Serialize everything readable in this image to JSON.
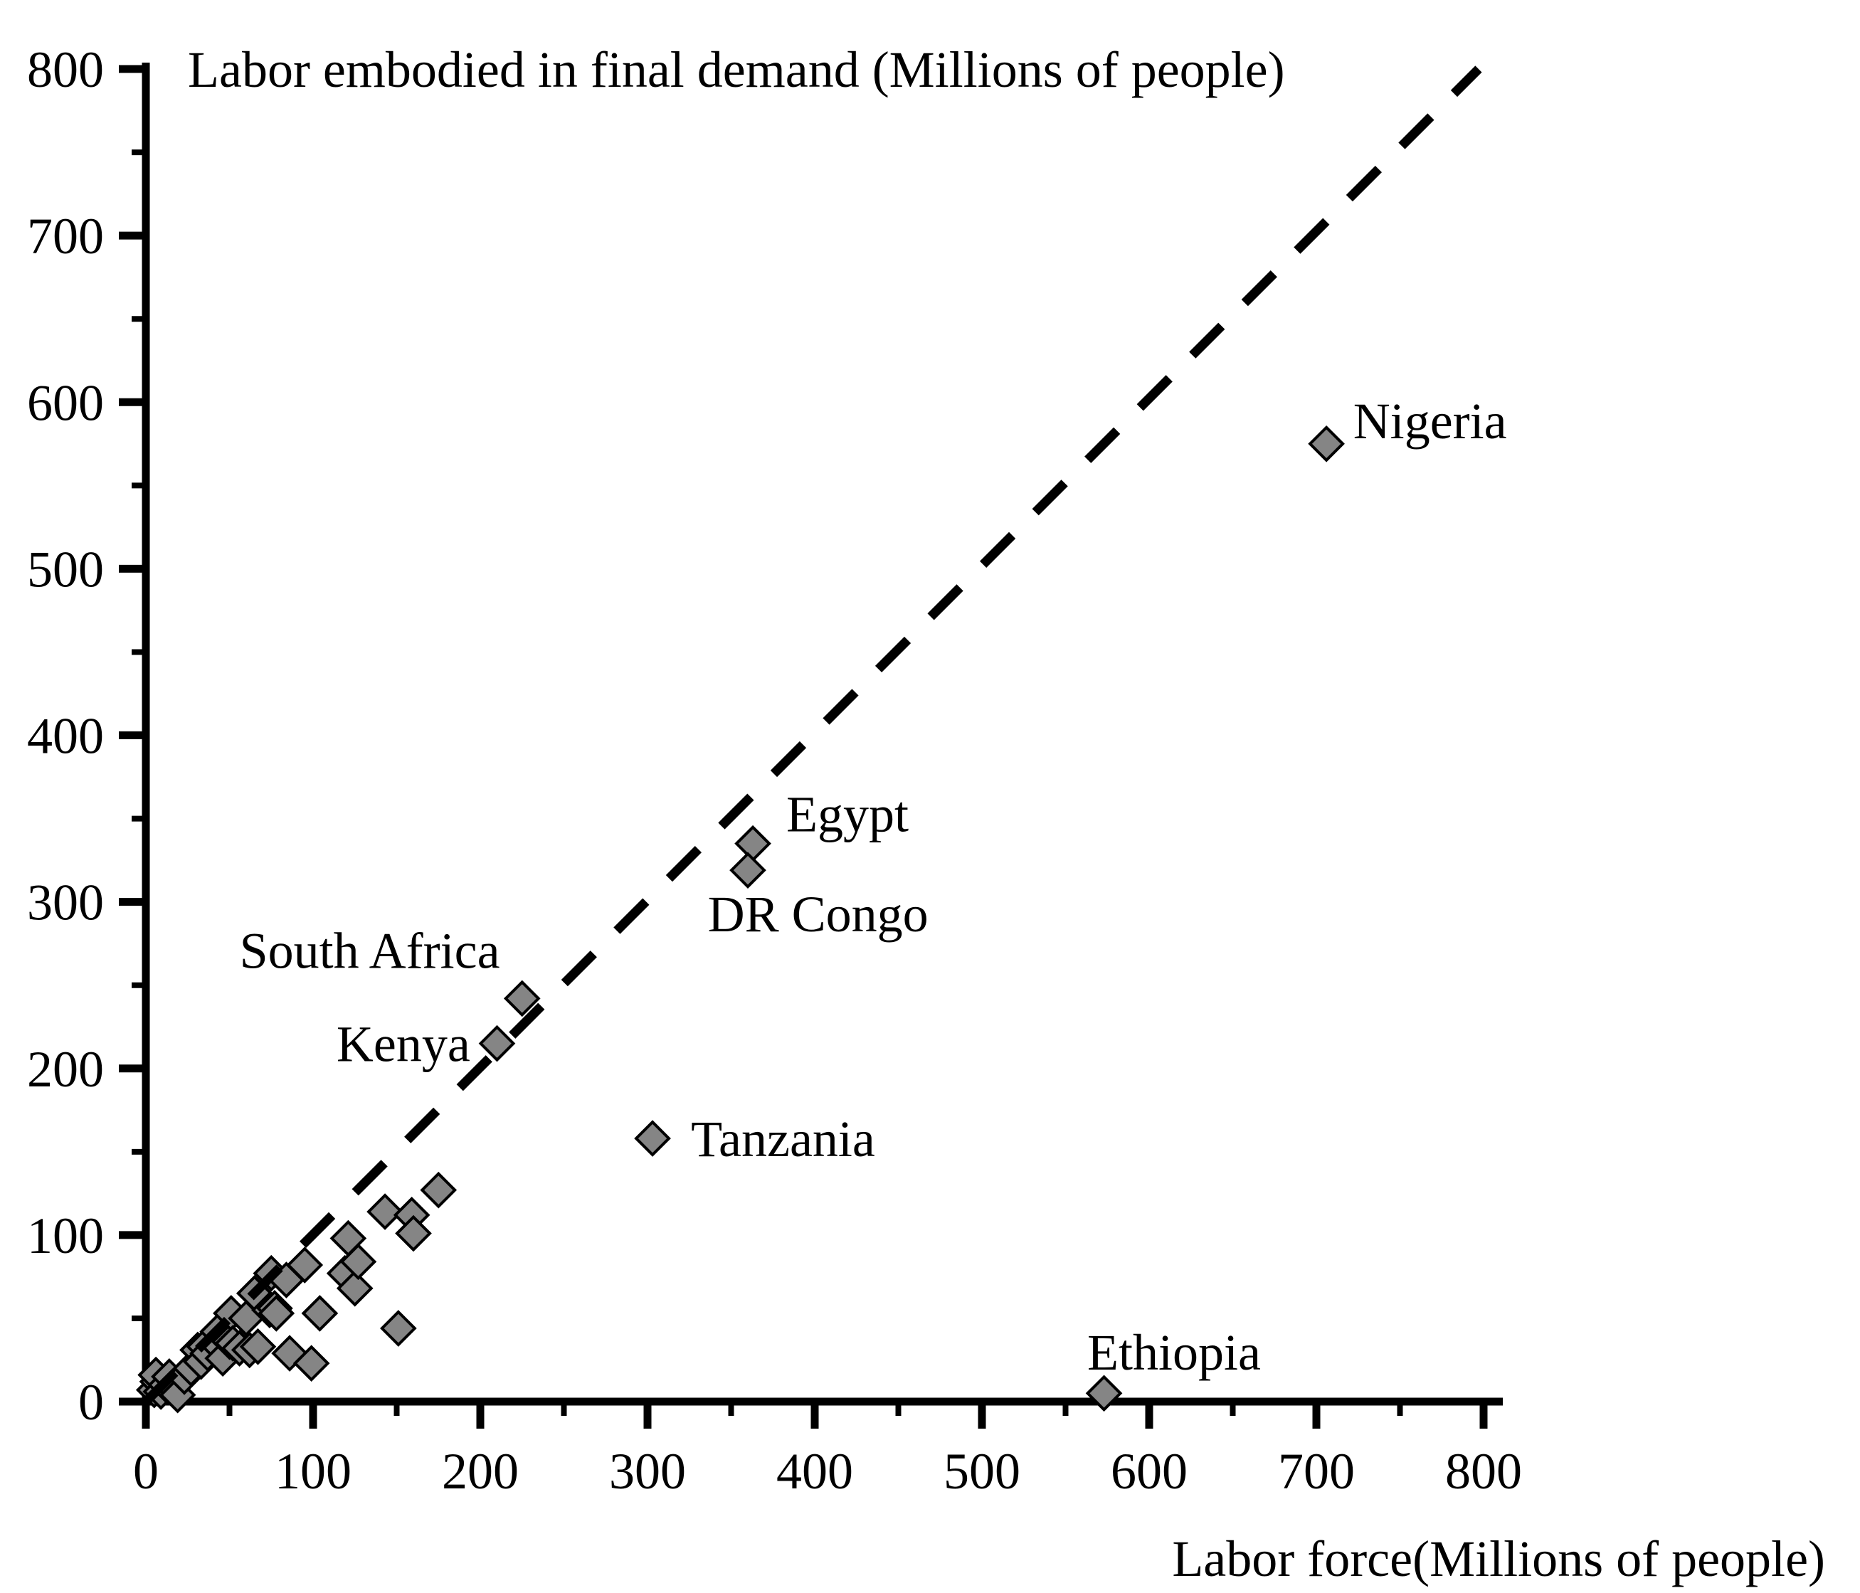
{
  "chart_data": {
    "type": "scatter",
    "title": "Labor embodied in final demand (Millions of people)",
    "xlabel": "Labor force(Millions of people)",
    "xlim": [
      0,
      800
    ],
    "ylim": [
      0,
      800
    ],
    "x_ticks": [
      0,
      100,
      200,
      300,
      400,
      500,
      600,
      700,
      800
    ],
    "y_ticks": [
      0,
      100,
      200,
      300,
      400,
      500,
      600,
      700,
      800
    ],
    "minor_tick_step": 50,
    "grid": false,
    "legend": false,
    "colors": {
      "marker_fill": "#858585",
      "marker_stroke": "#000000",
      "axis": "#000000",
      "background": "#ffffff"
    },
    "marker": {
      "shape": "diamond",
      "fill": "#858585",
      "stroke": "#000000"
    },
    "reference_line": {
      "style": "dashed",
      "meaning": "y = x identity line",
      "from": [
        0,
        0
      ],
      "to": [
        797,
        800
      ]
    },
    "labeled_points": [
      {
        "label": "Nigeria",
        "x": 706,
        "y": 575,
        "label_pos": [
          722,
          589
        ],
        "anchor": "start"
      },
      {
        "label": "Egypt",
        "x": 363,
        "y": 335,
        "label_pos": [
          383,
          353
        ],
        "anchor": "start"
      },
      {
        "label": "DR Congo",
        "x": 360,
        "y": 319,
        "label_pos": [
          336,
          293
        ],
        "anchor": "start"
      },
      {
        "label": "South Africa",
        "x": 225,
        "y": 242,
        "label_pos": [
          56,
          271
        ],
        "anchor": "start"
      },
      {
        "label": "Kenya",
        "x": 210,
        "y": 215,
        "label_pos": [
          114,
          215
        ],
        "anchor": "start"
      },
      {
        "label": "Tanzania",
        "x": 303,
        "y": 158,
        "label_pos": [
          326,
          158
        ],
        "anchor": "start"
      },
      {
        "label": "Ethiopia",
        "x": 573,
        "y": 5,
        "label_pos": [
          563,
          30
        ],
        "anchor": "start"
      }
    ],
    "unlabeled_points": [
      [
        5,
        7
      ],
      [
        7,
        12
      ],
      [
        9,
        6
      ],
      [
        6,
        16
      ],
      [
        12,
        10
      ],
      [
        14,
        15
      ],
      [
        16,
        9
      ],
      [
        19,
        4
      ],
      [
        23,
        15
      ],
      [
        27,
        20
      ],
      [
        31,
        31
      ],
      [
        33,
        24
      ],
      [
        35,
        33
      ],
      [
        37,
        29
      ],
      [
        43,
        42
      ],
      [
        44,
        33
      ],
      [
        46,
        26
      ],
      [
        50,
        36
      ],
      [
        51,
        53
      ],
      [
        52,
        35
      ],
      [
        56,
        32
      ],
      [
        60,
        50
      ],
      [
        62,
        31
      ],
      [
        65,
        65
      ],
      [
        67,
        33
      ],
      [
        74,
        55
      ],
      [
        75,
        77
      ],
      [
        77,
        56
      ],
      [
        78,
        53
      ],
      [
        84,
        73
      ],
      [
        86,
        29
      ],
      [
        95,
        82
      ],
      [
        99,
        23
      ],
      [
        104,
        53
      ],
      [
        119,
        77
      ],
      [
        121,
        98
      ],
      [
        125,
        68
      ],
      [
        127,
        84
      ],
      [
        143,
        114
      ],
      [
        151,
        44
      ],
      [
        159,
        112
      ],
      [
        160,
        101
      ],
      [
        175,
        127
      ]
    ]
  }
}
